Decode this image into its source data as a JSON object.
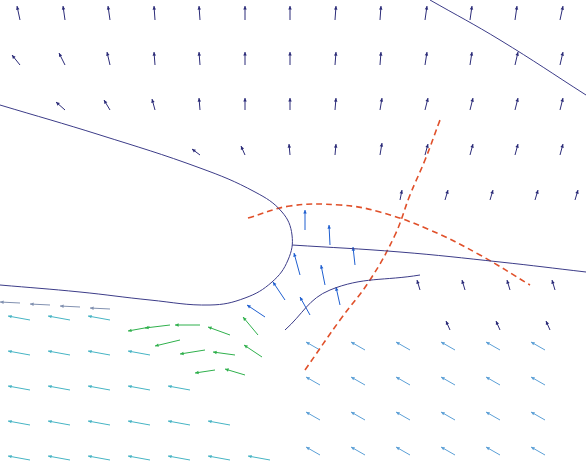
{
  "chart_data": {
    "type": "quiver",
    "xlim": [
      0,
      586
    ],
    "ylim": [
      0,
      475
    ],
    "grid": false,
    "tick_labels": false,
    "series": [
      {
        "type": "quiver",
        "marker": "arrow",
        "color": "#2b2b78",
        "x": [
          20,
          65,
          110,
          155,
          200,
          245,
          290,
          335,
          380,
          425,
          470,
          515,
          560,
          20,
          65,
          110,
          155,
          200,
          245,
          290,
          335,
          380,
          425,
          470,
          515,
          560,
          65,
          110,
          155,
          200,
          245,
          290,
          335,
          380,
          425,
          470,
          515,
          560,
          200,
          245,
          290,
          335,
          380,
          425,
          470,
          515,
          560,
          400,
          445,
          490,
          535,
          575,
          420,
          465,
          510,
          555,
          450,
          500,
          550
        ],
        "y": [
          455,
          455,
          455,
          455,
          455,
          455,
          455,
          455,
          455,
          455,
          455,
          455,
          455,
          410,
          410,
          410,
          410,
          410,
          410,
          410,
          410,
          410,
          410,
          410,
          410,
          410,
          365,
          365,
          365,
          365,
          365,
          365,
          365,
          365,
          365,
          365,
          365,
          365,
          320,
          320,
          320,
          320,
          320,
          320,
          320,
          320,
          320,
          275,
          275,
          275,
          275,
          275,
          185,
          185,
          185,
          185,
          145,
          145,
          145
        ],
        "u": [
          -3,
          -2,
          -2,
          -1,
          -1,
          0,
          0,
          1,
          1,
          2,
          2,
          2,
          3,
          -8,
          -6,
          -3,
          -1,
          -1,
          0,
          0,
          1,
          1,
          2,
          2,
          3,
          3,
          -9,
          -6,
          -3,
          -1,
          0,
          0,
          1,
          2,
          3,
          3,
          3,
          3,
          -8,
          -4,
          -1,
          1,
          2,
          3,
          3,
          3,
          3,
          2,
          3,
          3,
          3,
          3,
          -3,
          -3,
          -3,
          -3,
          -4,
          -4,
          -4
        ],
        "v": [
          14,
          14,
          14,
          14,
          14,
          14,
          14,
          14,
          14,
          14,
          14,
          14,
          14,
          10,
          12,
          13,
          13,
          13,
          13,
          13,
          13,
          13,
          13,
          13,
          13,
          13,
          8,
          10,
          11,
          12,
          12,
          12,
          12,
          12,
          12,
          12,
          12,
          12,
          6,
          9,
          11,
          11,
          12,
          11,
          11,
          11,
          11,
          10,
          10,
          10,
          10,
          10,
          10,
          10,
          10,
          10,
          9,
          9,
          9
        ]
      },
      {
        "type": "quiver",
        "marker": "arrow",
        "color": "#1f5fd0",
        "x": [
          305,
          330,
          355,
          300,
          325,
          285,
          310,
          340,
          265
        ],
        "y": [
          245,
          230,
          210,
          200,
          190,
          175,
          160,
          170,
          158
        ],
        "u": [
          0,
          -1,
          -2,
          -6,
          -4,
          -12,
          -10,
          -4,
          -18
        ],
        "v": [
          20,
          20,
          18,
          22,
          20,
          18,
          18,
          18,
          12
        ]
      },
      {
        "type": "quiver",
        "marker": "arrow",
        "color": "#2fb04c",
        "x": [
          170,
          200,
          230,
          258,
          205,
          235,
          262,
          180,
          150,
          215,
          245
        ],
        "y": [
          150,
          150,
          140,
          140,
          125,
          120,
          118,
          135,
          148,
          105,
          100
        ],
        "u": [
          -25,
          -25,
          -22,
          -15,
          -25,
          -22,
          -18,
          -25,
          -22,
          -20,
          -20
        ],
        "v": [
          -3,
          0,
          8,
          18,
          -4,
          3,
          12,
          -6,
          -4,
          -3,
          6
        ]
      },
      {
        "type": "quiver",
        "marker": "arrow",
        "color": "#46b4c4",
        "x": [
          30,
          70,
          110,
          30,
          70,
          110,
          150,
          30,
          70,
          110,
          150,
          190,
          30,
          70,
          110,
          150,
          190,
          230,
          30,
          70,
          110,
          150,
          190,
          230,
          270
        ],
        "y": [
          155,
          155,
          155,
          120,
          120,
          120,
          120,
          85,
          85,
          85,
          85,
          85,
          50,
          50,
          50,
          50,
          50,
          50,
          15,
          15,
          15,
          15,
          15,
          15,
          15
        ],
        "u": [
          -22,
          -22,
          -22,
          -22,
          -22,
          -22,
          -22,
          -22,
          -22,
          -22,
          -22,
          -22,
          -22,
          -22,
          -22,
          -22,
          -22,
          -22,
          -22,
          -22,
          -22,
          -22,
          -22,
          -22,
          -22
        ],
        "v": [
          4,
          4,
          4,
          4,
          4,
          4,
          4,
          4,
          4,
          4,
          4,
          4,
          4,
          4,
          4,
          4,
          4,
          4,
          4,
          4,
          4,
          4,
          4,
          4,
          4
        ]
      },
      {
        "type": "quiver",
        "marker": "arrow",
        "color": "#5b9fd6",
        "x": [
          320,
          365,
          410,
          455,
          500,
          545,
          320,
          365,
          410,
          455,
          500,
          545,
          320,
          365,
          410,
          455,
          500,
          545,
          320,
          365,
          410,
          455,
          500,
          545
        ],
        "y": [
          125,
          125,
          125,
          125,
          125,
          125,
          90,
          90,
          90,
          90,
          90,
          90,
          55,
          55,
          55,
          55,
          55,
          55,
          20,
          20,
          20,
          20,
          20,
          20
        ],
        "u": [
          -14,
          -14,
          -14,
          -14,
          -14,
          -14,
          -14,
          -14,
          -14,
          -14,
          -14,
          -14,
          -14,
          -14,
          -14,
          -14,
          -14,
          -14,
          -14,
          -14,
          -14,
          -14,
          -14,
          -14
        ],
        "v": [
          8,
          8,
          8,
          8,
          8,
          8,
          8,
          8,
          8,
          8,
          8,
          8,
          8,
          8,
          8,
          8,
          8,
          8,
          8,
          8,
          8,
          8,
          8,
          8
        ]
      },
      {
        "type": "quiver",
        "marker": "arrow",
        "color": "#8090b0",
        "x": [
          20,
          50,
          80,
          110
        ],
        "y": [
          172,
          170,
          168,
          166
        ],
        "u": [
          -20,
          -20,
          -20,
          -20
        ],
        "v": [
          1,
          1,
          1,
          1
        ]
      },
      {
        "type": "line",
        "line_style": "solid",
        "color": "#3c3c88",
        "x": [
          0,
          100,
          200,
          255,
          282,
          292,
          288,
          272,
          245,
          210,
          150,
          80,
          0
        ],
        "y": [
          370,
          340,
          307,
          283,
          263,
          240,
          215,
          193,
          177,
          170,
          175,
          183,
          190
        ]
      },
      {
        "type": "line",
        "line_style": "solid",
        "color": "#3c3c88",
        "x": [
          430,
          500,
          586
        ],
        "y": [
          475,
          435,
          380
        ]
      },
      {
        "type": "line",
        "line_style": "solid",
        "color": "#3c3c88",
        "x": [
          292,
          400,
          500,
          586
        ],
        "y": [
          230,
          223,
          213,
          203
        ]
      },
      {
        "type": "line",
        "line_style": "solid",
        "color": "#3c3c88",
        "x": [
          285,
          330,
          420
        ],
        "y": [
          145,
          185,
          200
        ]
      },
      {
        "type": "line",
        "line_style": "dashed",
        "color": "#e0502a",
        "x": [
          248,
          290,
          340,
          380,
          430,
          480,
          530
        ],
        "y": [
          257,
          269,
          270,
          263,
          245,
          220,
          190
        ]
      },
      {
        "type": "line",
        "line_style": "dashed",
        "color": "#e0502a",
        "x": [
          305,
          340,
          370,
          395,
          410,
          425,
          440
        ],
        "y": [
          105,
          155,
          195,
          240,
          280,
          315,
          355
        ]
      }
    ]
  }
}
